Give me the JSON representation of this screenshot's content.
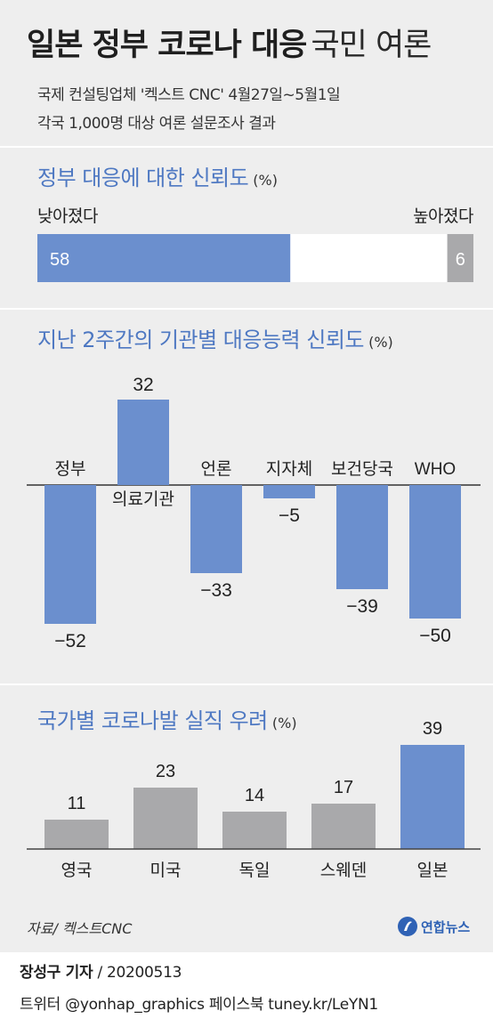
{
  "header": {
    "title_bold": "일본 정부 코로나 대응",
    "title_light": "국민 여론",
    "subtitle_line1": "국제 컨설팅업체 '켁스트 CNC' 4월27일~5월1일",
    "subtitle_line2": "각국 1,000명 대상 여론 설문조사 결과"
  },
  "colors": {
    "accent": "#6b8fce",
    "grey": "#a9a9ab",
    "title_blue": "#4e78c2",
    "panel": "#eeeeee"
  },
  "trust": {
    "title": "정부 대응에 대한 신뢰도",
    "unit": "(%)",
    "left_label": "낮아졌다",
    "right_label": "높아졌다",
    "chart_data": {
      "type": "bar",
      "orientation": "horizontal-stacked",
      "title": "정부 대응에 대한 신뢰도",
      "categories": [
        "낮아졌다",
        "높아졌다"
      ],
      "values": [
        58,
        6
      ],
      "value_labels": [
        "58",
        "6"
      ],
      "xlim": [
        0,
        100
      ]
    }
  },
  "institutions": {
    "title": "지난 2주간의 기관별 대응능력 신뢰도",
    "unit": "(%)",
    "chart_data": {
      "type": "bar",
      "title": "지난 2주간의 기관별 대응능력 신뢰도",
      "categories": [
        "정부",
        "의료기관",
        "언론",
        "지자체",
        "보건당국",
        "WHO"
      ],
      "values": [
        -52,
        32,
        -33,
        -5,
        -39,
        -50
      ],
      "value_labels": [
        "−52",
        "32",
        "−33",
        "−5",
        "−39",
        "−50"
      ],
      "ylim": [
        -52,
        32
      ]
    }
  },
  "jobs": {
    "title": "국가별 코로나발 실직 우려",
    "unit": "(%)",
    "chart_data": {
      "type": "bar",
      "title": "국가별 코로나발 실직 우려",
      "categories": [
        "영국",
        "미국",
        "독일",
        "스웨덴",
        "일본"
      ],
      "values": [
        11,
        23,
        14,
        17,
        39
      ],
      "highlight": "일본",
      "ylim": [
        0,
        39
      ]
    }
  },
  "source": "자료/ 켁스트CNC",
  "logo_text": "연합뉴스",
  "footer": {
    "byline": "장성구 기자",
    "date": "/ 20200513",
    "social": "트위터 @yonhap_graphics  페이스북 tuney.kr/LeYN1"
  }
}
